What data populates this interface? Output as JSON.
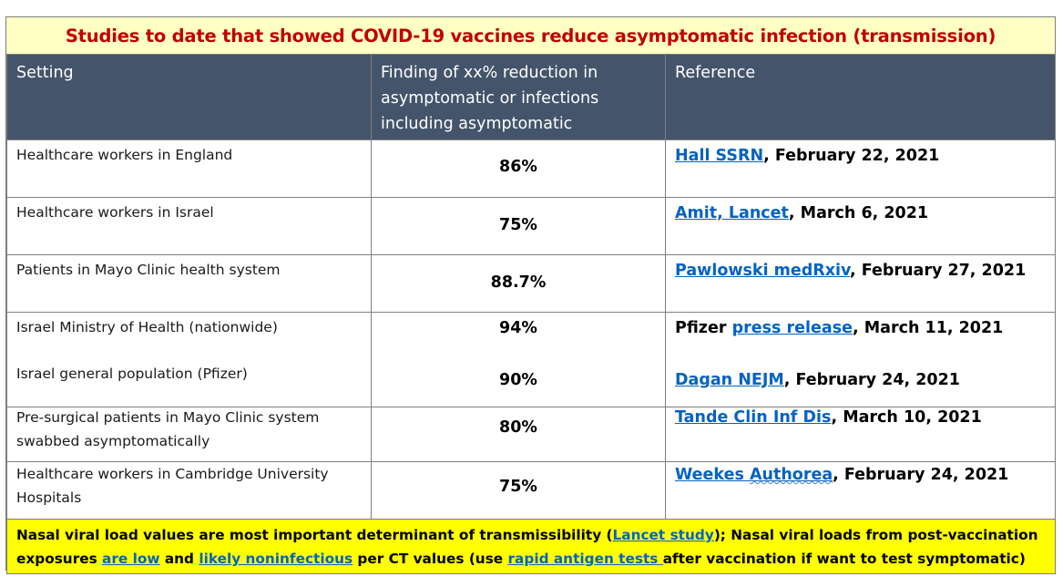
{
  "title": "Studies to date that showed COVID-19 vaccines reduce asymptomatic infection (transmission)",
  "headers": {
    "setting": "Setting",
    "finding": "Finding of xx% reduction in asymptomatic or infections including asymptomatic",
    "reference": "Reference"
  },
  "rows": [
    {
      "setting": "Healthcare workers in England",
      "finding": "86%",
      "ref_link": "Hall SSRN",
      "ref_rest": ", February 22, 2021"
    },
    {
      "setting": "Healthcare workers in Israel",
      "finding": "75%",
      "ref_link": "Amit, Lancet",
      "ref_rest": ", March 6, 2021"
    },
    {
      "setting": "Patients in Mayo Clinic health system",
      "finding": "88.7%",
      "ref_link": "Pawlowski medRxiv",
      "ref_rest": ", February 27, 2021"
    },
    {
      "setting": "Israel Ministry of Health (nationwide)",
      "finding": "94%",
      "ref_pre": "Pfizer ",
      "ref_link": "press release",
      "ref_rest": ", March 11, 2021",
      "setting_b": "Israel general population (Pfizer)",
      "finding_b": "90%",
      "ref_link_b": "Dagan NEJM",
      "ref_rest_b": ", February 24, 2021"
    },
    {
      "setting_1": "Pre-surgical patients in Mayo Clinic system",
      "setting_2": "swabbed asymptomatically",
      "finding": "80%",
      "ref_link": "Tande Clin Inf Dis",
      "ref_rest": ", March 10, 2021"
    },
    {
      "setting_1": "Healthcare workers in Cambridge University",
      "setting_2": "Hospitals",
      "finding": "75%",
      "ref_link_a": "Weekes ",
      "ref_link_b": "Authorea",
      "ref_rest": ", February 24, 2021"
    }
  ],
  "footer": {
    "line1_a": "Nasal viral load values are most important determinant of transmissibility (",
    "line1_link": "Lancet study",
    "line1_b": "); Nasal viral loads from post-vaccination",
    "line2_a": "exposures ",
    "line2_link1": "are low",
    "line2_b": " and ",
    "line2_link2": "likely noninfectious",
    "line2_c": " per CT values (use ",
    "line2_link3": "rapid antigen tests ",
    "line2_d": "after vaccination if want to test symptomatic)"
  }
}
